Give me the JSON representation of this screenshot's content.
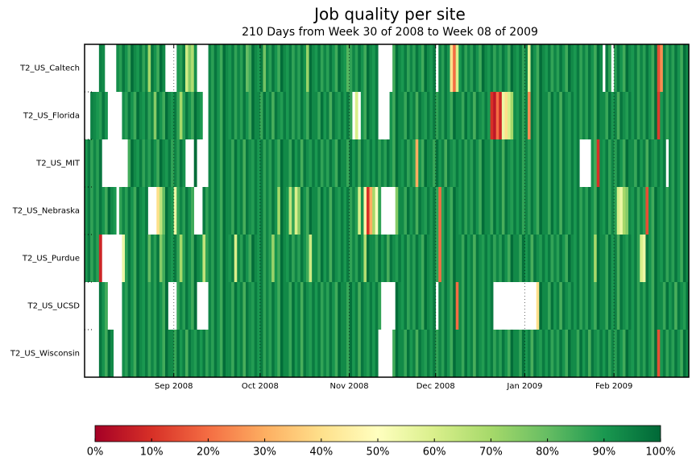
{
  "chart_data": {
    "type": "heatmap",
    "title": "Job quality per site",
    "subtitle": "210 Days from Week 30 of 2008 to Week 08 of 2009",
    "categories": [
      "T2_US_Caltech",
      "T2_US_Florida",
      "T2_US_MIT",
      "T2_US_Nebraska",
      "T2_US_Purdue",
      "T2_US_UCSD",
      "T2_US_Wisconsin"
    ],
    "xlim": [
      0,
      210
    ],
    "xticks": [
      {
        "value": 31,
        "label": "Sep 2008"
      },
      {
        "value": 61,
        "label": "Oct 2008"
      },
      {
        "value": 92,
        "label": "Nov 2008"
      },
      {
        "value": 122,
        "label": "Dec 2008"
      },
      {
        "value": 153,
        "label": "Jan 2009"
      },
      {
        "value": 184,
        "label": "Feb 2009"
      }
    ],
    "grid": true,
    "clim": [
      0,
      100
    ],
    "colormap": [
      "#a50026",
      "#d73027",
      "#f46d43",
      "#fdae61",
      "#fee08b",
      "#ffffbf",
      "#d9ef8b",
      "#a6d96a",
      "#66bd63",
      "#1a9850",
      "#006837"
    ],
    "cticks": [
      {
        "value": 0,
        "label": "0%"
      },
      {
        "value": 10,
        "label": "10%"
      },
      {
        "value": 20,
        "label": "20%"
      },
      {
        "value": 30,
        "label": "30%"
      },
      {
        "value": 40,
        "label": "40%"
      },
      {
        "value": 50,
        "label": "50%"
      },
      {
        "value": 60,
        "label": "60%"
      },
      {
        "value": 70,
        "label": "70%"
      },
      {
        "value": 80,
        "label": "80%"
      },
      {
        "value": 90,
        "label": "90%"
      },
      {
        "value": 100,
        "label": "100%"
      }
    ],
    "values": [
      [
        null,
        null,
        null,
        null,
        null,
        95,
        93,
        null,
        null,
        null,
        null,
        92,
        88,
        97,
        91,
        85,
        99,
        93,
        90,
        96,
        87,
        94,
        70,
        97,
        91,
        85,
        99,
        93,
        null,
        null,
        null,
        null,
        90,
        88,
        96,
        62,
        75,
        68,
        92,
        null,
        null,
        null,
        null,
        94,
        88,
        97,
        91,
        85,
        99,
        93,
        90,
        96,
        87,
        94,
        88,
        97,
        80,
        85,
        99,
        93,
        90,
        96,
        78,
        94,
        88,
        97,
        91,
        85,
        99,
        93,
        90,
        96,
        87,
        94,
        88,
        97,
        91,
        72,
        99,
        93,
        90,
        96,
        87,
        94,
        88,
        97,
        91,
        85,
        99,
        93,
        90,
        82,
        87,
        94,
        88,
        97,
        91,
        85,
        99,
        93,
        90,
        96,
        null,
        null,
        null,
        null,
        null,
        85,
        99,
        93,
        90,
        96,
        87,
        94,
        88,
        97,
        91,
        85,
        99,
        93,
        90,
        96,
        null,
        94,
        88,
        97,
        91,
        40,
        20,
        60,
        90,
        96,
        87,
        94,
        88,
        97,
        91,
        85,
        99,
        93,
        90,
        96,
        87,
        94,
        88,
        97,
        91,
        85,
        99,
        93,
        90,
        96,
        87,
        94,
        58,
        97,
        91,
        85,
        99,
        93,
        90,
        96,
        87,
        94,
        88,
        97,
        91,
        85,
        99,
        93,
        90,
        96,
        87,
        94,
        88,
        97,
        91,
        85,
        99,
        93,
        null,
        96,
        87,
        null,
        88,
        97,
        91,
        85,
        99,
        93,
        90,
        96,
        87,
        94,
        88,
        97,
        91,
        85,
        99,
        15,
        25,
        96,
        87,
        94,
        88,
        97,
        91,
        85,
        99,
        93
      ],
      [
        null,
        null,
        95,
        93,
        90,
        88,
        97,
        91,
        null,
        null,
        null,
        null,
        null,
        92,
        88,
        97,
        91,
        85,
        99,
        93,
        90,
        96,
        87,
        94,
        75,
        97,
        91,
        85,
        99,
        93,
        90,
        96,
        87,
        70,
        88,
        97,
        91,
        85,
        99,
        93,
        90,
        null,
        null,
        94,
        88,
        97,
        91,
        85,
        99,
        93,
        90,
        96,
        87,
        94,
        88,
        97,
        91,
        85,
        99,
        93,
        93,
        86,
        98,
        90,
        95,
        84,
        97,
        92,
        89,
        96,
        90,
        96,
        87,
        94,
        88,
        97,
        91,
        85,
        99,
        93,
        93,
        86,
        98,
        90,
        95,
        84,
        97,
        92,
        89,
        96,
        90,
        96,
        87,
        null,
        60,
        null,
        91,
        85,
        99,
        93,
        90,
        96,
        null,
        null,
        null,
        null,
        91,
        85,
        99,
        93,
        93,
        86,
        98,
        90,
        95,
        84,
        97,
        92,
        89,
        96,
        90,
        96,
        87,
        94,
        88,
        97,
        91,
        85,
        99,
        93,
        93,
        86,
        98,
        90,
        95,
        84,
        97,
        92,
        89,
        96,
        90,
        10,
        5,
        20,
        8,
        55,
        40,
        60,
        70,
        93,
        90,
        96,
        87,
        94,
        25,
        97,
        91,
        85,
        99,
        93,
        93,
        86,
        98,
        90,
        95,
        84,
        97,
        92,
        89,
        96,
        90,
        96,
        87,
        94,
        88,
        97,
        91,
        85,
        99,
        93,
        93,
        86,
        98,
        90,
        95,
        84,
        97,
        92,
        89,
        96,
        90,
        96,
        87,
        94,
        88,
        97,
        91,
        85,
        99,
        12,
        90,
        96,
        87,
        94,
        88,
        97,
        91,
        85,
        99,
        93
      ],
      [
        90,
        96,
        87,
        94,
        88,
        97,
        null,
        null,
        null,
        null,
        null,
        null,
        null,
        null,
        null,
        85,
        99,
        93,
        90,
        96,
        87,
        94,
        88,
        97,
        91,
        85,
        99,
        93,
        90,
        96,
        87,
        94,
        88,
        97,
        91,
        null,
        null,
        null,
        99,
        null,
        null,
        null,
        null,
        94,
        88,
        97,
        91,
        85,
        99,
        93,
        93,
        86,
        98,
        90,
        95,
        84,
        97,
        92,
        89,
        96,
        90,
        96,
        87,
        94,
        88,
        97,
        91,
        85,
        99,
        93,
        93,
        86,
        98,
        90,
        95,
        84,
        97,
        92,
        89,
        96,
        90,
        96,
        87,
        94,
        88,
        97,
        91,
        85,
        99,
        93,
        93,
        86,
        98,
        90,
        95,
        84,
        97,
        92,
        89,
        96,
        90,
        96,
        87,
        94,
        88,
        97,
        91,
        85,
        99,
        93,
        90,
        96,
        87,
        94,
        88,
        30,
        91,
        85,
        99,
        93,
        93,
        86,
        98,
        90,
        95,
        84,
        97,
        92,
        89,
        96,
        90,
        96,
        87,
        94,
        88,
        97,
        91,
        85,
        99,
        93,
        93,
        86,
        98,
        90,
        95,
        84,
        97,
        92,
        89,
        96,
        90,
        96,
        87,
        94,
        88,
        97,
        91,
        85,
        99,
        93,
        93,
        86,
        98,
        90,
        95,
        84,
        97,
        92,
        89,
        96,
        90,
        96,
        null,
        null,
        null,
        null,
        91,
        85,
        10,
        93,
        90,
        96,
        87,
        94,
        88,
        97,
        91,
        85,
        99,
        93,
        93,
        86,
        98,
        90,
        95,
        84,
        97,
        92,
        89,
        96,
        90,
        96,
        null,
        94,
        88,
        97,
        91,
        85,
        99,
        93
      ],
      [
        90,
        96,
        87,
        94,
        88,
        97,
        91,
        85,
        99,
        93,
        90,
        null,
        87,
        94,
        88,
        97,
        91,
        85,
        99,
        93,
        90,
        96,
        null,
        null,
        null,
        40,
        65,
        80,
        99,
        93,
        90,
        55,
        87,
        94,
        88,
        97,
        91,
        85,
        null,
        null,
        null,
        96,
        87,
        94,
        88,
        97,
        91,
        85,
        99,
        93,
        93,
        86,
        98,
        90,
        95,
        84,
        97,
        92,
        89,
        96,
        90,
        96,
        87,
        94,
        88,
        97,
        91,
        70,
        99,
        93,
        90,
        65,
        87,
        60,
        75,
        97,
        91,
        85,
        99,
        93,
        93,
        86,
        98,
        90,
        95,
        84,
        97,
        92,
        89,
        96,
        90,
        96,
        87,
        94,
        88,
        60,
        91,
        45,
        10,
        30,
        70,
        50,
        87,
        null,
        null,
        null,
        null,
        null,
        75,
        93,
        93,
        86,
        98,
        90,
        95,
        84,
        97,
        92,
        89,
        96,
        90,
        96,
        87,
        20,
        88,
        97,
        91,
        85,
        99,
        93,
        90,
        96,
        87,
        94,
        88,
        97,
        91,
        85,
        99,
        93,
        93,
        86,
        98,
        90,
        95,
        84,
        97,
        92,
        89,
        96,
        90,
        96,
        87,
        94,
        88,
        97,
        91,
        85,
        99,
        93,
        93,
        86,
        98,
        90,
        95,
        84,
        97,
        92,
        89,
        96,
        90,
        96,
        87,
        94,
        88,
        97,
        91,
        85,
        99,
        93,
        90,
        96,
        87,
        94,
        88,
        60,
        55,
        70,
        75,
        93,
        90,
        96,
        87,
        94,
        88,
        15,
        91,
        85,
        99,
        93,
        90,
        96,
        87,
        94,
        88,
        97,
        91,
        85,
        99,
        93
      ],
      [
        90,
        96,
        87,
        94,
        88,
        8,
        null,
        null,
        null,
        null,
        null,
        null,
        null,
        55,
        88,
        97,
        91,
        85,
        99,
        93,
        90,
        96,
        80,
        94,
        88,
        97,
        75,
        85,
        99,
        93,
        90,
        96,
        87,
        70,
        88,
        97,
        91,
        85,
        99,
        93,
        90,
        65,
        87,
        94,
        88,
        97,
        91,
        85,
        99,
        93,
        90,
        96,
        60,
        94,
        88,
        97,
        91,
        85,
        99,
        93,
        90,
        96,
        87,
        94,
        88,
        72,
        91,
        85,
        99,
        93,
        90,
        96,
        87,
        94,
        88,
        97,
        91,
        85,
        62,
        93,
        93,
        86,
        98,
        90,
        95,
        84,
        97,
        92,
        89,
        96,
        90,
        96,
        87,
        94,
        88,
        97,
        91,
        68,
        99,
        93,
        93,
        86,
        98,
        90,
        95,
        84,
        97,
        92,
        89,
        96,
        90,
        96,
        87,
        94,
        88,
        97,
        91,
        85,
        99,
        93,
        90,
        96,
        87,
        20,
        88,
        97,
        91,
        85,
        99,
        93,
        93,
        86,
        98,
        90,
        95,
        84,
        97,
        92,
        89,
        96,
        90,
        96,
        87,
        94,
        88,
        97,
        91,
        85,
        99,
        93,
        93,
        86,
        98,
        90,
        95,
        84,
        97,
        92,
        89,
        96,
        90,
        96,
        87,
        94,
        88,
        97,
        91,
        85,
        99,
        93,
        90,
        96,
        87,
        94,
        88,
        97,
        91,
        70,
        99,
        93,
        93,
        86,
        98,
        90,
        95,
        84,
        97,
        92,
        89,
        96,
        90,
        96,
        87,
        60,
        55,
        97,
        91,
        85,
        99,
        93,
        90,
        96,
        87,
        94,
        88,
        97,
        91,
        85,
        99,
        93
      ],
      [
        null,
        null,
        null,
        null,
        null,
        97,
        91,
        85,
        null,
        null,
        null,
        null,
        null,
        92,
        88,
        97,
        91,
        85,
        99,
        93,
        90,
        96,
        87,
        94,
        88,
        97,
        91,
        85,
        99,
        null,
        null,
        null,
        87,
        94,
        88,
        97,
        91,
        85,
        99,
        null,
        null,
        null,
        null,
        94,
        88,
        97,
        91,
        85,
        99,
        93,
        93,
        86,
        98,
        90,
        95,
        84,
        97,
        92,
        89,
        96,
        90,
        96,
        87,
        94,
        88,
        97,
        91,
        85,
        99,
        93,
        93,
        86,
        98,
        90,
        95,
        84,
        97,
        92,
        89,
        96,
        90,
        96,
        87,
        94,
        88,
        97,
        91,
        85,
        99,
        93,
        93,
        86,
        98,
        90,
        95,
        84,
        97,
        92,
        89,
        96,
        90,
        96,
        87,
        null,
        null,
        null,
        null,
        null,
        99,
        93,
        90,
        96,
        87,
        94,
        88,
        97,
        91,
        85,
        99,
        93,
        90,
        96,
        null,
        94,
        88,
        97,
        91,
        85,
        99,
        20,
        93,
        86,
        98,
        90,
        95,
        84,
        97,
        92,
        89,
        96,
        90,
        96,
        null,
        null,
        null,
        null,
        null,
        null,
        null,
        null,
        null,
        null,
        null,
        null,
        null,
        null,
        null,
        40,
        99,
        93,
        93,
        86,
        98,
        90,
        95,
        84,
        97,
        92,
        89,
        96,
        90,
        96,
        87,
        94,
        88,
        97,
        91,
        85,
        99,
        93,
        93,
        86,
        98,
        90,
        95,
        84,
        97,
        92,
        89,
        96,
        90,
        96,
        87,
        94,
        88,
        97,
        91,
        85,
        99,
        93,
        93,
        86,
        98,
        90,
        95,
        84,
        97,
        92,
        89,
        96
      ],
      [
        null,
        null,
        null,
        null,
        null,
        97,
        91,
        85,
        99,
        93,
        null,
        null,
        null,
        92,
        88,
        97,
        91,
        85,
        99,
        93,
        90,
        96,
        87,
        94,
        88,
        97,
        91,
        85,
        99,
        93,
        93,
        86,
        98,
        90,
        95,
        84,
        97,
        92,
        89,
        96,
        90,
        96,
        87,
        94,
        88,
        97,
        91,
        85,
        99,
        93,
        93,
        86,
        98,
        90,
        95,
        84,
        97,
        92,
        89,
        96,
        90,
        96,
        87,
        94,
        88,
        97,
        91,
        85,
        99,
        93,
        93,
        86,
        98,
        90,
        95,
        84,
        97,
        92,
        89,
        96,
        90,
        96,
        87,
        94,
        88,
        97,
        91,
        85,
        99,
        93,
        93,
        86,
        98,
        90,
        95,
        84,
        97,
        92,
        89,
        96,
        90,
        96,
        null,
        null,
        null,
        null,
        null,
        85,
        99,
        93,
        93,
        86,
        98,
        90,
        95,
        84,
        97,
        92,
        89,
        96,
        90,
        96,
        87,
        94,
        88,
        97,
        91,
        85,
        99,
        93,
        93,
        86,
        98,
        90,
        95,
        84,
        97,
        92,
        89,
        96,
        90,
        96,
        87,
        94,
        88,
        97,
        91,
        85,
        99,
        93,
        93,
        86,
        98,
        90,
        95,
        84,
        97,
        92,
        89,
        96,
        90,
        96,
        87,
        94,
        88,
        97,
        91,
        85,
        99,
        93,
        93,
        86,
        98,
        90,
        95,
        84,
        97,
        92,
        89,
        96,
        90,
        96,
        87,
        94,
        88,
        97,
        91,
        85,
        99,
        93,
        90,
        96,
        87,
        94,
        88,
        97,
        91,
        85,
        99,
        15,
        90,
        96,
        87,
        94,
        88,
        97,
        91,
        85,
        99,
        93
      ]
    ]
  }
}
